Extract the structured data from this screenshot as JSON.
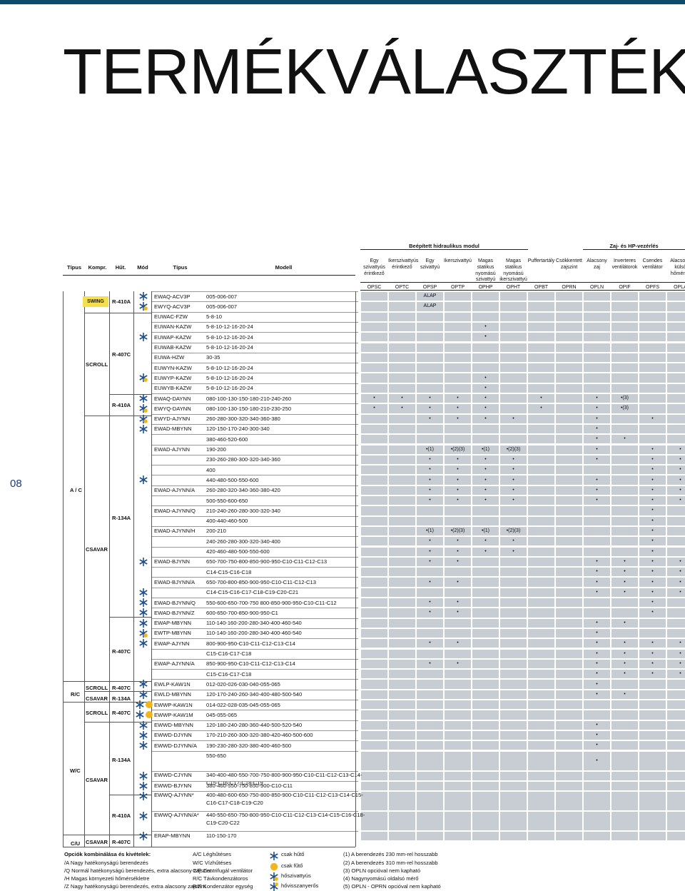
{
  "page": {
    "title": "TERMÉKVÁLASZTÉK",
    "page_number": "08"
  },
  "header": {
    "group1": "Beépített hidraulikus modul",
    "group2": "Zaj- és HP-vezérlés",
    "cols_left": [
      {
        "label": "Típus"
      },
      {
        "label": "Kompr."
      },
      {
        "label": "Hűt."
      },
      {
        "label": "Mód"
      },
      {
        "label": "Típus"
      },
      {
        "label": "Modell"
      }
    ],
    "option_cols": [
      {
        "name": "Egy szivattyús érintkező",
        "code": "OPSC"
      },
      {
        "name": "Ikerszivattyús érintkező",
        "code": "OPTC"
      },
      {
        "name": "Egy szivattyú",
        "code": "OPSP"
      },
      {
        "name": "Ikerszivattyú",
        "code": "OPTP"
      },
      {
        "name": "Magas statikus nyomású szivattyú",
        "code": "OPHP"
      },
      {
        "name": "Magas statikus nyomású ikerszivattyú",
        "code": "OPHT"
      },
      {
        "name": "Puffertartály",
        "code": "OPBT"
      },
      {
        "name": "Csökkentett zajszint",
        "code": "OPRN"
      },
      {
        "name": "Alacsony zaj",
        "code": "OPLN"
      },
      {
        "name": "Inverteres ventilátorok",
        "code": "OPIF"
      },
      {
        "name": "Csendes ventilátor",
        "code": "OPFS"
      },
      {
        "name": "Alacsony külső hőmérsé",
        "code": "OPLA"
      }
    ]
  },
  "groups": {
    "tipus": [
      "A / C",
      "R/C",
      "W/C",
      "C/U"
    ],
    "kompr": [
      "SCROLL",
      "CSAVAR",
      "SCROLL",
      "CSAVAR",
      "SCROLL",
      "CSAVAR",
      "CSAVAR"
    ],
    "swing": "SWING",
    "hut": [
      "R-410A",
      "R-407C",
      "R-410A",
      "R-134A",
      "R-407C",
      "R-407C",
      "R-134A",
      "R-407C",
      "R-134A",
      "R-410A",
      "R-407C"
    ]
  },
  "rows": [
    {
      "type": "EWAQ-ACV3P",
      "model": "005-006-007",
      "marks": [
        {
          "c": 2,
          "t": "ALAP"
        }
      ]
    },
    {
      "type": "EWYQ-ACV3P",
      "model": "005-006-007",
      "marks": [
        {
          "c": 2,
          "t": "ALAP"
        }
      ]
    },
    {
      "type": "EUWAC-FZW",
      "model": "5-8-10",
      "marks": []
    },
    {
      "type": "EUWAN-KAZW",
      "model": "5-8-10-12-16-20-24",
      "marks": [
        {
          "c": 4,
          "t": "•"
        }
      ]
    },
    {
      "type": "EUWAP-KAZW",
      "model": "5-8-10-12-16-20-24",
      "marks": [
        {
          "c": 4,
          "t": "•"
        }
      ]
    },
    {
      "type": "EUWAB-KAZW",
      "model": "5-8-10-12-16-20-24",
      "marks": []
    },
    {
      "type": "EUWA-HZW",
      "model": "30-35",
      "marks": []
    },
    {
      "type": "EUWYN-KAZW",
      "model": "5-8-10-12-16-20-24",
      "marks": []
    },
    {
      "type": "EUWYP-KAZW",
      "model": "5-8-10-12-16-20-24",
      "marks": [
        {
          "c": 4,
          "t": "•"
        }
      ]
    },
    {
      "type": "EUWYB-KAZW",
      "model": "5-8-10-12-16-20-24",
      "marks": [
        {
          "c": 4,
          "t": "•"
        }
      ]
    },
    {
      "type": "EWAQ-DAYNN",
      "model": "080-100-130-150-180-210-240-260",
      "marks": [
        {
          "c": 0,
          "t": "•"
        },
        {
          "c": 1,
          "t": "•"
        },
        {
          "c": 2,
          "t": "•"
        },
        {
          "c": 3,
          "t": "•"
        },
        {
          "c": 4,
          "t": "•"
        },
        {
          "c": 6,
          "t": "•"
        },
        {
          "c": 8,
          "t": "•"
        },
        {
          "c": 9,
          "t": "•(3)"
        }
      ]
    },
    {
      "type": "EWYQ-DAYNN",
      "model": "080-100-130-150-180-210-230-250",
      "marks": [
        {
          "c": 0,
          "t": "•"
        },
        {
          "c": 1,
          "t": "•"
        },
        {
          "c": 2,
          "t": "•"
        },
        {
          "c": 3,
          "t": "•"
        },
        {
          "c": 4,
          "t": "•"
        },
        {
          "c": 6,
          "t": "•"
        },
        {
          "c": 8,
          "t": "•"
        },
        {
          "c": 9,
          "t": "•(3)"
        }
      ]
    },
    {
      "type": "EWYD-AJYNN",
      "model": "260-280-300-320-340-360-380",
      "marks": [
        {
          "c": 2,
          "t": "•"
        },
        {
          "c": 3,
          "t": "•"
        },
        {
          "c": 4,
          "t": "•"
        },
        {
          "c": 5,
          "t": "•"
        },
        {
          "c": 8,
          "t": "•"
        },
        {
          "c": 10,
          "t": "•"
        }
      ]
    },
    {
      "type": "EWAD-MBYNN",
      "model": "120-150-170-240-300-340",
      "marks": [
        {
          "c": 8,
          "t": "•"
        }
      ]
    },
    {
      "type": "",
      "model": "380-460-520-600",
      "marks": [
        {
          "c": 8,
          "t": "•"
        },
        {
          "c": 9,
          "t": "•"
        }
      ]
    },
    {
      "type": "EWAD-AJYNN",
      "model": "190-200",
      "marks": [
        {
          "c": 2,
          "t": "•(1)"
        },
        {
          "c": 3,
          "t": "•(2)(3)"
        },
        {
          "c": 4,
          "t": "•(1)"
        },
        {
          "c": 5,
          "t": "•(2)(3)"
        },
        {
          "c": 8,
          "t": "•"
        },
        {
          "c": 10,
          "t": "•"
        },
        {
          "c": 11,
          "t": "•"
        }
      ]
    },
    {
      "type": "",
      "model": "230-260-280-300-320-340-360",
      "marks": [
        {
          "c": 2,
          "t": "•"
        },
        {
          "c": 3,
          "t": "•"
        },
        {
          "c": 4,
          "t": "•"
        },
        {
          "c": 5,
          "t": "•"
        },
        {
          "c": 8,
          "t": "•"
        },
        {
          "c": 10,
          "t": "•"
        },
        {
          "c": 11,
          "t": "•"
        }
      ]
    },
    {
      "type": "",
      "model": "400",
      "marks": [
        {
          "c": 2,
          "t": "•"
        },
        {
          "c": 3,
          "t": "•"
        },
        {
          "c": 4,
          "t": "•"
        },
        {
          "c": 5,
          "t": "•"
        },
        {
          "c": 10,
          "t": "•"
        },
        {
          "c": 11,
          "t": "•"
        }
      ]
    },
    {
      "type": "",
      "model": "440-480-500-550-600",
      "marks": [
        {
          "c": 2,
          "t": "•"
        },
        {
          "c": 3,
          "t": "•"
        },
        {
          "c": 4,
          "t": "•"
        },
        {
          "c": 5,
          "t": "•"
        },
        {
          "c": 8,
          "t": "•"
        },
        {
          "c": 10,
          "t": "•"
        },
        {
          "c": 11,
          "t": "•"
        }
      ]
    },
    {
      "type": "EWAD-AJYNN/A",
      "model": "260-280-320-340-360-380-420",
      "marks": [
        {
          "c": 2,
          "t": "•"
        },
        {
          "c": 3,
          "t": "•"
        },
        {
          "c": 4,
          "t": "•"
        },
        {
          "c": 5,
          "t": "•"
        },
        {
          "c": 8,
          "t": "•"
        },
        {
          "c": 10,
          "t": "•"
        },
        {
          "c": 11,
          "t": "•"
        }
      ]
    },
    {
      "type": "",
      "model": "500-550-600-650",
      "marks": [
        {
          "c": 2,
          "t": "•"
        },
        {
          "c": 3,
          "t": "•"
        },
        {
          "c": 4,
          "t": "•"
        },
        {
          "c": 5,
          "t": "•"
        },
        {
          "c": 8,
          "t": "•"
        },
        {
          "c": 10,
          "t": "•"
        },
        {
          "c": 11,
          "t": "•"
        }
      ]
    },
    {
      "type": "EWAD-AJYNN/Q",
      "model": "210-240-260-280-300-320-340",
      "marks": [
        {
          "c": 10,
          "t": "•"
        }
      ]
    },
    {
      "type": "",
      "model": "400-440-460-500",
      "marks": [
        {
          "c": 10,
          "t": "•"
        }
      ]
    },
    {
      "type": "EWAD-AJYNN/H",
      "model": "200-210",
      "marks": [
        {
          "c": 2,
          "t": "•(1)"
        },
        {
          "c": 3,
          "t": "•(2)(3)"
        },
        {
          "c": 4,
          "t": "•(1)"
        },
        {
          "c": 5,
          "t": "•(2)(3)"
        },
        {
          "c": 10,
          "t": "•"
        }
      ]
    },
    {
      "type": "",
      "model": "240-260-280-300-320-340-400",
      "marks": [
        {
          "c": 2,
          "t": "•"
        },
        {
          "c": 3,
          "t": "•"
        },
        {
          "c": 4,
          "t": "•"
        },
        {
          "c": 5,
          "t": "•"
        },
        {
          "c": 10,
          "t": "•"
        }
      ]
    },
    {
      "type": "",
      "model": "420-460-480-500-550-600",
      "marks": [
        {
          "c": 2,
          "t": "•"
        },
        {
          "c": 3,
          "t": "•"
        },
        {
          "c": 4,
          "t": "•"
        },
        {
          "c": 5,
          "t": "•"
        },
        {
          "c": 10,
          "t": "•"
        }
      ]
    },
    {
      "type": "EWAD-BJYNN",
      "model": "650-700-750-800-850-900-950-C10-C11-C12-C13",
      "marks": [
        {
          "c": 2,
          "t": "•"
        },
        {
          "c": 3,
          "t": "•"
        },
        {
          "c": 8,
          "t": "•"
        },
        {
          "c": 9,
          "t": "•"
        },
        {
          "c": 10,
          "t": "•"
        },
        {
          "c": 11,
          "t": "•"
        }
      ]
    },
    {
      "type": "",
      "model": "C14-C15-C16-C18",
      "marks": [
        {
          "c": 8,
          "t": "•"
        },
        {
          "c": 9,
          "t": "•"
        },
        {
          "c": 10,
          "t": "•"
        },
        {
          "c": 11,
          "t": "•"
        }
      ]
    },
    {
      "type": "EWAD-BJYNN/A",
      "model": "650-700-800-850-900-950-C10-C11-C12-C13",
      "marks": [
        {
          "c": 2,
          "t": "•"
        },
        {
          "c": 3,
          "t": "•"
        },
        {
          "c": 8,
          "t": "•"
        },
        {
          "c": 9,
          "t": "•"
        },
        {
          "c": 10,
          "t": "•"
        },
        {
          "c": 11,
          "t": "•"
        }
      ]
    },
    {
      "type": "",
      "model": "C14-C15-C16-C17-C18-C19-C20-C21",
      "marks": [
        {
          "c": 8,
          "t": "•"
        },
        {
          "c": 9,
          "t": "•"
        },
        {
          "c": 10,
          "t": "•"
        },
        {
          "c": 11,
          "t": "•"
        }
      ]
    },
    {
      "type": "EWAD-BJYNN/Q",
      "model": "550-600-650-700-750 800-850-900-950-C10-C11-C12",
      "marks": [
        {
          "c": 2,
          "t": "•"
        },
        {
          "c": 3,
          "t": "•"
        },
        {
          "c": 10,
          "t": "•"
        }
      ]
    },
    {
      "type": "EWAD-BJYNN/Z",
      "model": "600-650-700-850-900-950-C1",
      "marks": [
        {
          "c": 2,
          "t": "•"
        },
        {
          "c": 3,
          "t": "•"
        },
        {
          "c": 10,
          "t": "•"
        }
      ]
    },
    {
      "type": "EWAP-MBYNN",
      "model": "110-140-160-200-280-340-400-460-540",
      "marks": [
        {
          "c": 8,
          "t": "•"
        },
        {
          "c": 9,
          "t": "•"
        }
      ]
    },
    {
      "type": "EWTP-MBYNN",
      "model": "110-140-160-200-280-340-400-460-540",
      "marks": [
        {
          "c": 8,
          "t": "•"
        }
      ]
    },
    {
      "type": "EWAP-AJYNN",
      "model": "800-900-950-C10-C11-C12-C13-C14",
      "marks": [
        {
          "c": 2,
          "t": "•"
        },
        {
          "c": 3,
          "t": "•"
        },
        {
          "c": 8,
          "t": "•"
        },
        {
          "c": 9,
          "t": "•"
        },
        {
          "c": 10,
          "t": "•"
        },
        {
          "c": 11,
          "t": "•"
        }
      ]
    },
    {
      "type": "",
      "model": "C15-C16-C17-C18",
      "marks": [
        {
          "c": 8,
          "t": "•"
        },
        {
          "c": 9,
          "t": "•"
        },
        {
          "c": 10,
          "t": "•"
        },
        {
          "c": 11,
          "t": "•"
        }
      ]
    },
    {
      "type": "EWAP-AJYNN/A",
      "model": "850-900-950-C10-C11-C12-C13-C14",
      "marks": [
        {
          "c": 2,
          "t": "•"
        },
        {
          "c": 3,
          "t": "•"
        },
        {
          "c": 8,
          "t": "•"
        },
        {
          "c": 9,
          "t": "•"
        },
        {
          "c": 10,
          "t": "•"
        },
        {
          "c": 11,
          "t": "•"
        }
      ]
    },
    {
      "type": "",
      "model": "C15-C16-C17-C18",
      "marks": [
        {
          "c": 8,
          "t": "•"
        },
        {
          "c": 9,
          "t": "•"
        },
        {
          "c": 10,
          "t": "•"
        },
        {
          "c": 11,
          "t": "•"
        }
      ]
    },
    {
      "type": "EWLP-KAW1N",
      "model": "012-020-026-030-040-055-065",
      "marks": [
        {
          "c": 8,
          "t": "•"
        }
      ]
    },
    {
      "type": "EWLD-MBYNN",
      "model": "120-170-240-260-340-400-480-500-540",
      "marks": [
        {
          "c": 8,
          "t": "•"
        },
        {
          "c": 9,
          "t": "•"
        }
      ]
    },
    {
      "type": "EWWP-KAW1N",
      "model": "014-022-028-035-045-055-065",
      "marks": []
    },
    {
      "type": "EWWP-KAW1M",
      "model": "045-055-065",
      "marks": []
    },
    {
      "type": "EWWD-MBYNN",
      "model": "120-180-240-280-360-440-500-520-540",
      "marks": [
        {
          "c": 8,
          "t": "•"
        }
      ]
    },
    {
      "type": "EWWD-DJYNN",
      "model": "170-210-260-300-320-380-420-460-500-600",
      "marks": [
        {
          "c": 8,
          "t": "•"
        }
      ]
    },
    {
      "type": "EWWD-DJYNN/A",
      "model": "190-230-280-320-380-400-460-500",
      "marks": [
        {
          "c": 8,
          "t": "•"
        }
      ]
    },
    {
      "type": "",
      "model": "550-650",
      "marks": [
        {
          "c": 8,
          "t": "•"
        }
      ]
    },
    {
      "type": "EWWD-CJYNN",
      "model": "340-400-480-550-700-750-800-900-950-C10-C11-C12-C13-C14-",
      "model2": "C15-C16-C17-C18-C19",
      "marks": []
    },
    {
      "type": "EWWD-BJYNN",
      "model": "380-460-550-750-850-900-C10-C11",
      "marks": []
    },
    {
      "type": "EWWQ-AJYNN*",
      "model": "400-480-600-650-750-800-850-900-C10-C11-C12-C13-C14-C15-",
      "model2": "C16-C17-C18-C19-C20",
      "marks": []
    },
    {
      "type": "EWWQ-AJYNN/A*",
      "model": "440-550-650-750-800-950-C10-C11-C12-C13-C14-C15-C16-C18-",
      "model2": "C19-C20-C22",
      "marks": []
    },
    {
      "type": "ERAP-MBYNN",
      "model": "110-150-170",
      "marks": []
    }
  ],
  "legend": {
    "title": "Opciók kombinálása és kivételek:",
    "modes": [
      "/A   Nagy hatékonyságú berendezés",
      "/Q   Normál hatékonyságú berendezés, extra alacsony zajszint",
      "/H   Magas környezeti hőmérsékletre",
      "/Z   Nagy hatékonyságú berendezés, extra alacsony zajszint"
    ],
    "abbr": [
      "A/C   Léghűtéses",
      "W/C   Vízhűtéses",
      "C/F   Centrifugál ventilátor",
      "R/C   Távkondenzátoros",
      "R/E   Kondenzátor egység"
    ],
    "icons": [
      "csak hűtő",
      "csak fűtő",
      "hőszivattyús",
      "hővisszanyerős"
    ],
    "notes": [
      "(1)   A berendezés 230 mm-rel hosszabb",
      "(2)   A berendezés 310 mm-rel hosszabb",
      "(3)   OPLN opcióval nem kapható",
      "(4)   Nagynyomású oldalsó mérő",
      "(5)   OPLN - OPRN opcióval nem kapható"
    ]
  },
  "colors": {
    "accent": "#0d4d6a",
    "shade": "#c8cdd4",
    "swing": "#f4df4e",
    "icon_cool": "#1f4f8a",
    "icon_heat": "#f3b51c"
  }
}
